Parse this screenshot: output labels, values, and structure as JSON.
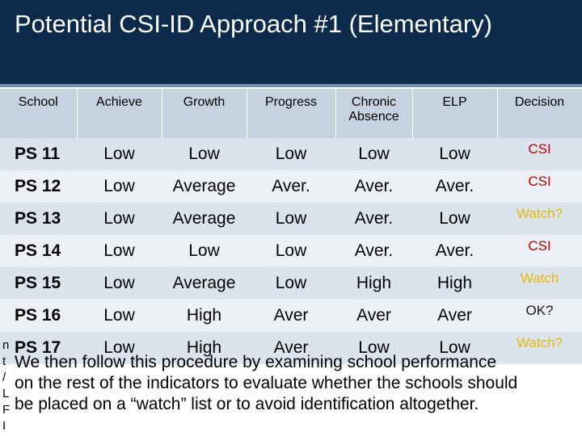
{
  "title": "Potential CSI-ID Approach #1 (Elementary)",
  "table": {
    "headers": [
      "School",
      "Achieve",
      "Growth",
      "Progress",
      "Chronic Absence",
      "ELP",
      "Decision"
    ],
    "rows": [
      [
        "PS 11",
        "Low",
        "Low",
        "Low",
        "Low",
        "Low",
        "CSI"
      ],
      [
        "PS 12",
        "Low",
        "Average",
        "Aver.",
        "Aver.",
        "Aver.",
        "CSI"
      ],
      [
        "PS 13",
        "Low",
        "Average",
        "Low",
        "Aver.",
        "Low",
        "Watch?"
      ],
      [
        "PS 14",
        "Low",
        "Low",
        "Low",
        "Aver.",
        "Aver.",
        "CSI"
      ],
      [
        "PS 15",
        "Low",
        "Average",
        "Low",
        "High",
        "High",
        "Watch"
      ],
      [
        "PS 16",
        "Low",
        "High",
        "Aver",
        "Aver",
        "Aver",
        "OK?"
      ],
      [
        "PS 17",
        "Low",
        "High",
        "Aver",
        "Low",
        "Low",
        "Watch?"
      ]
    ]
  },
  "fragments": [
    "n",
    "t",
    "/",
    "L",
    "F",
    "I"
  ],
  "body_lines": [
    "We then follow this procedure by examining school performance",
    "on the rest of the indicators to evaluate whether the schools should",
    "be placed on a “watch” list or to avoid identification altogether."
  ]
}
